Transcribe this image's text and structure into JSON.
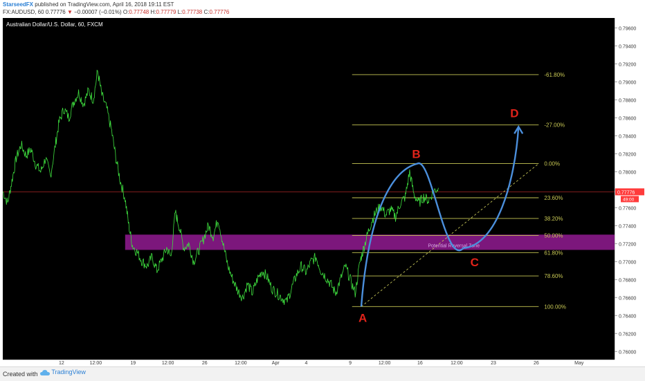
{
  "header": {
    "author": "StarseedFX",
    "published": " published on TradingView.com, April 16, 2018 19:11 EST",
    "symbol": "FX:AUDUSD, 60",
    "last": "0.77776",
    "change_arrow": "▼",
    "change": "−0.00007 (−0.01%)",
    "o_label": "O:",
    "o_value": "0.77748",
    "h_label": "H:",
    "h_value": "0.77779",
    "l_label": "L:",
    "l_value": "0.77738",
    "c_label": "C:",
    "c_value": "0.77776"
  },
  "footer": {
    "created": "Created with",
    "brand": "TradingView"
  },
  "chart_data": {
    "type": "line",
    "title": "Australian Dollar/U.S. Dollar, 60, FXCM",
    "y_range": [
      0.7591,
      0.7971
    ],
    "y_ticks": [
      0.796,
      0.794,
      0.792,
      0.79,
      0.788,
      0.786,
      0.784,
      0.782,
      0.78,
      0.778,
      0.776,
      0.774,
      0.772,
      0.77,
      0.768,
      0.766,
      0.764,
      0.762,
      0.76
    ],
    "y_tick_labels": [
      "0.79600",
      "0.79400",
      "0.79200",
      "0.79000",
      "0.78800",
      "0.78600",
      "0.78400",
      "0.78200",
      "0.78000",
      "0.77800",
      "0.77600",
      "0.77400",
      "0.77200",
      "0.77000",
      "0.76800",
      "0.76600",
      "0.76400",
      "0.76200",
      "0.76000"
    ],
    "x_ticks": [
      "12",
      "12:00",
      "19",
      "12:00",
      "26",
      "12:00",
      "Apr",
      "4",
      "9",
      "12:00",
      "16",
      "12:00",
      "23",
      "26",
      "May"
    ],
    "x_tick_pos": [
      0.096,
      0.152,
      0.213,
      0.27,
      0.33,
      0.389,
      0.446,
      0.496,
      0.568,
      0.624,
      0.682,
      0.742,
      0.802,
      0.872,
      0.942
    ],
    "price_series": [
      [
        0.0,
        0.7778
      ],
      [
        0.008,
        0.7765
      ],
      [
        0.015,
        0.779
      ],
      [
        0.022,
        0.7815
      ],
      [
        0.03,
        0.783
      ],
      [
        0.038,
        0.7818
      ],
      [
        0.046,
        0.7825
      ],
      [
        0.054,
        0.7808
      ],
      [
        0.062,
        0.78
      ],
      [
        0.07,
        0.7815
      ],
      [
        0.078,
        0.7795
      ],
      [
        0.086,
        0.783
      ],
      [
        0.092,
        0.7855
      ],
      [
        0.1,
        0.787
      ],
      [
        0.108,
        0.786
      ],
      [
        0.116,
        0.7878
      ],
      [
        0.124,
        0.7888
      ],
      [
        0.132,
        0.7875
      ],
      [
        0.14,
        0.789
      ],
      [
        0.148,
        0.788
      ],
      [
        0.155,
        0.7912
      ],
      [
        0.162,
        0.7885
      ],
      [
        0.17,
        0.787
      ],
      [
        0.178,
        0.7845
      ],
      [
        0.185,
        0.7815
      ],
      [
        0.192,
        0.779
      ],
      [
        0.2,
        0.777
      ],
      [
        0.206,
        0.774
      ],
      [
        0.212,
        0.7718
      ],
      [
        0.22,
        0.771
      ],
      [
        0.228,
        0.77
      ],
      [
        0.236,
        0.7695
      ],
      [
        0.244,
        0.7705
      ],
      [
        0.252,
        0.769
      ],
      [
        0.26,
        0.7702
      ],
      [
        0.268,
        0.7715
      ],
      [
        0.275,
        0.7705
      ],
      [
        0.282,
        0.7755
      ],
      [
        0.288,
        0.774
      ],
      [
        0.296,
        0.7715
      ],
      [
        0.304,
        0.772
      ],
      [
        0.312,
        0.77
      ],
      [
        0.32,
        0.7712
      ],
      [
        0.328,
        0.7725
      ],
      [
        0.336,
        0.774
      ],
      [
        0.344,
        0.7728
      ],
      [
        0.352,
        0.7748
      ],
      [
        0.36,
        0.772
      ],
      [
        0.368,
        0.7695
      ],
      [
        0.376,
        0.768
      ],
      [
        0.384,
        0.7668
      ],
      [
        0.392,
        0.766
      ],
      [
        0.4,
        0.7675
      ],
      [
        0.408,
        0.7665
      ],
      [
        0.416,
        0.768
      ],
      [
        0.424,
        0.769
      ],
      [
        0.432,
        0.7683
      ],
      [
        0.44,
        0.767
      ],
      [
        0.448,
        0.7665
      ],
      [
        0.456,
        0.766
      ],
      [
        0.464,
        0.7655
      ],
      [
        0.472,
        0.767
      ],
      [
        0.48,
        0.7685
      ],
      [
        0.488,
        0.7695
      ],
      [
        0.496,
        0.7688
      ],
      [
        0.504,
        0.77
      ],
      [
        0.512,
        0.7705
      ],
      [
        0.52,
        0.769
      ],
      [
        0.528,
        0.7683
      ],
      [
        0.536,
        0.7675
      ],
      [
        0.544,
        0.7665
      ],
      [
        0.552,
        0.768
      ],
      [
        0.56,
        0.7695
      ],
      [
        0.568,
        0.768
      ],
      [
        0.576,
        0.7665
      ],
      [
        0.584,
        0.77
      ],
      [
        0.59,
        0.7715
      ],
      [
        0.596,
        0.773
      ],
      [
        0.603,
        0.7745
      ],
      [
        0.61,
        0.7755
      ],
      [
        0.618,
        0.7762
      ],
      [
        0.626,
        0.7752
      ],
      [
        0.634,
        0.7758
      ],
      [
        0.642,
        0.775
      ],
      [
        0.65,
        0.7765
      ],
      [
        0.658,
        0.7772
      ],
      [
        0.665,
        0.78
      ],
      [
        0.672,
        0.7775
      ],
      [
        0.68,
        0.7765
      ],
      [
        0.688,
        0.7772
      ],
      [
        0.696,
        0.7768
      ],
      [
        0.704,
        0.7778
      ],
      [
        0.712,
        0.7782
      ]
    ],
    "fib_levels": [
      {
        "label": "-61.80%",
        "price": 0.7908
      },
      {
        "label": "-27.00%",
        "price": 0.7852
      },
      {
        "label": "0.00%",
        "price": 0.7809
      },
      {
        "label": "23.60%",
        "price": 0.7771
      },
      {
        "label": "38.20%",
        "price": 0.7748
      },
      {
        "label": "50.00%",
        "price": 0.7729
      },
      {
        "label": "61.80%",
        "price": 0.771
      },
      {
        "label": "78.60%",
        "price": 0.7684
      },
      {
        "label": "100.00%",
        "price": 0.765
      }
    ],
    "zone": {
      "label": "Potential Reversal Zone",
      "top": 0.773,
      "bottom": 0.7713
    },
    "last_price": {
      "label": "0.77776",
      "value": 0.77776,
      "badge": "49:00"
    },
    "points": [
      {
        "label": "A",
        "x": 0.586,
        "price": 0.765
      },
      {
        "label": "B",
        "x": 0.678,
        "price": 0.7809
      },
      {
        "label": "C",
        "x": 0.762,
        "price": 0.7715
      },
      {
        "label": "D",
        "x": 0.843,
        "price": 0.785
      }
    ],
    "colors": {
      "background": "#000000",
      "price": "#3fe03f",
      "fib": "#c8c854",
      "zone": "#8a1a8a",
      "zone_text": "#d9a8e8",
      "wave": "#4b8fdc",
      "point": "#e2231a",
      "trend": "#d8d860",
      "last_price": "#ff3b3b"
    }
  }
}
